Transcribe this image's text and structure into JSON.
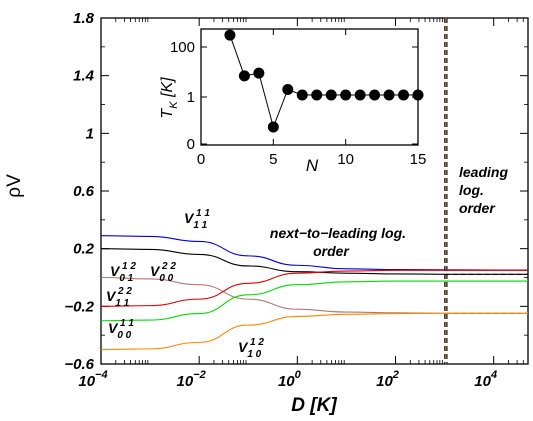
{
  "chart_data": [
    {
      "type": "line",
      "xscale": "log",
      "xlim": [
        0.0001,
        50000
      ],
      "ylim": [
        -0.6,
        1.8
      ],
      "xlabel": "D [K]",
      "ylabel": "ρV",
      "xticks": [
        0.0001,
        0.01,
        1,
        100,
        10000
      ],
      "xtick_labels": [
        {
          "base": "10",
          "exp": "−4"
        },
        {
          "base": "10",
          "exp": "−2"
        },
        {
          "base": "10",
          "exp": "0"
        },
        {
          "base": "10",
          "exp": "2"
        },
        {
          "base": "10",
          "exp": "4"
        }
      ],
      "yticks": [
        -0.6,
        -0.2,
        0.2,
        0.6,
        1,
        1.4,
        1.8
      ],
      "ytick_labels": [
        "−0.6",
        "−0.2",
        "0.2",
        "0.6",
        "1",
        "1.4",
        "1.8"
      ],
      "crossover_D": 1000,
      "series": [
        {
          "name": "V_{11}^{11}",
          "sub": "1 1",
          "sup": "1 1",
          "color": "#0000dd",
          "x": [
            0.0001,
            0.001,
            0.01,
            0.1,
            1,
            10,
            100,
            1000,
            10000,
            50000
          ],
          "y": [
            0.29,
            0.285,
            0.25,
            0.15,
            0.085,
            0.06,
            0.055,
            0.053,
            0.052,
            0.052
          ]
        },
        {
          "name": "V_{01}^{12}",
          "sub": "0 1",
          "sup": "1 2",
          "color": "#000000",
          "x": [
            0.0001,
            0.001,
            0.01,
            0.1,
            1,
            10,
            100,
            1000,
            10000,
            50000
          ],
          "y": [
            0.2,
            0.195,
            0.16,
            0.08,
            0.04,
            0.03,
            0.025,
            0.022,
            0.022,
            0.022
          ]
        },
        {
          "name": "V_{00}^{22}",
          "sub": "0 0",
          "sup": "2 2",
          "color": "#b07878",
          "x": [
            0.0001,
            0.001,
            0.01,
            0.1,
            1,
            10,
            100,
            1000,
            10000,
            50000
          ],
          "y": [
            0.0,
            -0.01,
            -0.05,
            -0.15,
            -0.22,
            -0.24,
            -0.245,
            -0.248,
            -0.248,
            -0.248
          ]
        },
        {
          "name": "V_{11}^{22}",
          "sub": "1 1",
          "sup": "2 2",
          "color": "#dd0000",
          "x": [
            0.0001,
            0.001,
            0.01,
            0.1,
            1,
            10,
            100,
            1000,
            10000,
            50000
          ],
          "y": [
            -0.2,
            -0.195,
            -0.15,
            -0.04,
            0.03,
            0.045,
            0.05,
            0.05,
            0.05,
            0.05
          ]
        },
        {
          "name": "V_{00}^{11}",
          "sub": "0 0",
          "sup": "1 1",
          "color": "#00dd00",
          "x": [
            0.0001,
            0.001,
            0.01,
            0.1,
            1,
            10,
            100,
            1000,
            10000,
            50000
          ],
          "y": [
            -0.3,
            -0.295,
            -0.25,
            -0.12,
            -0.05,
            -0.03,
            -0.025,
            -0.025,
            -0.025,
            -0.025
          ]
        },
        {
          "name": "V_{10}^{12}",
          "sub": "1 0",
          "sup": "1 2",
          "color": "#ff8800",
          "x": [
            0.0001,
            0.001,
            0.01,
            0.1,
            1,
            10,
            100,
            1000,
            10000,
            50000
          ],
          "y": [
            -0.5,
            -0.495,
            -0.45,
            -0.33,
            -0.27,
            -0.255,
            -0.25,
            -0.248,
            -0.248,
            -0.248
          ]
        }
      ],
      "annotations": [
        "next−to−leading log.",
        "order",
        "leading",
        "log.",
        "order"
      ]
    },
    {
      "type": "scatter",
      "xlabel": "N",
      "ylabel": "T_K [K]",
      "xlim": [
        0,
        15
      ],
      "yscale": "log",
      "xticks": [
        0,
        5,
        10,
        15
      ],
      "xtick_labels": [
        "0",
        "5",
        "10",
        "15"
      ],
      "yticks": [
        "100",
        "1",
        "0"
      ],
      "x": [
        2,
        3,
        4,
        5,
        6,
        7,
        8,
        9,
        10,
        11,
        12,
        13,
        14,
        15
      ],
      "y": [
        300,
        7,
        9,
        0.1,
        2,
        1.2,
        1.2,
        1.2,
        1.2,
        1.2,
        1.2,
        1.2,
        1.2,
        1.2
      ]
    }
  ]
}
